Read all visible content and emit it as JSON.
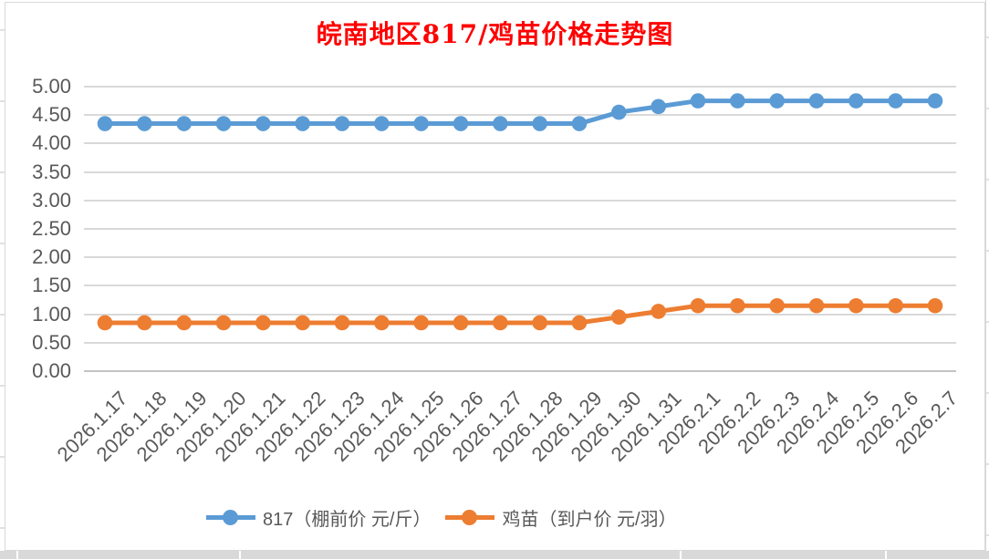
{
  "chart_data": {
    "type": "line",
    "title": "皖南地区817/鸡苗价格走势图",
    "title_color": "#FF0000",
    "categories": [
      "2026.1.17",
      "2026.1.18",
      "2026.1.19",
      "2026.1.20",
      "2026.1.21",
      "2026.1.22",
      "2026.1.23",
      "2026.1.24",
      "2026.1.25",
      "2026.1.26",
      "2026.1.27",
      "2026.1.28",
      "2026.1.29",
      "2026.1.30",
      "2026.1.31",
      "2026.2.1",
      "2026.2.2",
      "2026.2.3",
      "2026.2.4",
      "2026.2.5",
      "2026.2.6",
      "2026.2.7"
    ],
    "series": [
      {
        "name": "817（棚前价 元/斤）",
        "color": "#5B9BD5",
        "values": [
          4.35,
          4.35,
          4.35,
          4.35,
          4.35,
          4.35,
          4.35,
          4.35,
          4.35,
          4.35,
          4.35,
          4.35,
          4.35,
          4.55,
          4.65,
          4.75,
          4.75,
          4.75,
          4.75,
          4.75,
          4.75,
          4.75
        ]
      },
      {
        "name": "鸡苗（到户价 元/羽）",
        "color": "#ED7D31",
        "values": [
          0.85,
          0.85,
          0.85,
          0.85,
          0.85,
          0.85,
          0.85,
          0.85,
          0.85,
          0.85,
          0.85,
          0.85,
          0.85,
          0.95,
          1.05,
          1.15,
          1.15,
          1.15,
          1.15,
          1.15,
          1.15,
          1.15
        ]
      }
    ],
    "y_ticks": [
      "5.00",
      "4.50",
      "4.00",
      "3.50",
      "3.00",
      "2.50",
      "2.00",
      "1.50",
      "1.00",
      "0.50",
      "0.00"
    ],
    "ylim": [
      0,
      5
    ],
    "y_step": 0.5,
    "grid": true,
    "legend_position": "bottom",
    "axis_label_color": "#595959",
    "gridline_color": "#D9D9D9",
    "baseline_color": "#C3C3C3",
    "xlabel": "",
    "ylabel": ""
  }
}
